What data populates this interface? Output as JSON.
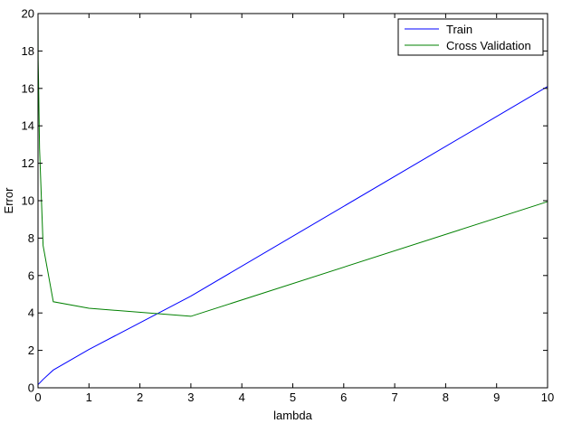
{
  "chart_data": {
    "type": "line",
    "title": "",
    "xlabel": "lambda",
    "ylabel": "Error",
    "xlim": [
      0,
      10
    ],
    "ylim": [
      0,
      20
    ],
    "xticks": [
      0,
      1,
      2,
      3,
      4,
      5,
      6,
      7,
      8,
      9,
      10
    ],
    "yticks": [
      0,
      2,
      4,
      6,
      8,
      10,
      12,
      14,
      16,
      18,
      20
    ],
    "grid": false,
    "legend_position": "top-right",
    "series": [
      {
        "name": "Train",
        "color": "#0000ff",
        "x": [
          0,
          0.001,
          0.003,
          0.01,
          0.03,
          0.1,
          0.3,
          1,
          3,
          10
        ],
        "y": [
          0.17,
          0.17,
          0.18,
          0.2,
          0.25,
          0.45,
          0.95,
          2.05,
          4.9,
          16.1
        ]
      },
      {
        "name": "Cross Validation",
        "color": "#008000",
        "x": [
          0,
          0.001,
          0.003,
          0.01,
          0.03,
          0.1,
          0.3,
          1,
          3,
          10
        ],
        "y": [
          20.0,
          19.0,
          17.5,
          16.5,
          12.8,
          7.6,
          4.6,
          4.25,
          3.82,
          9.95
        ]
      }
    ]
  }
}
